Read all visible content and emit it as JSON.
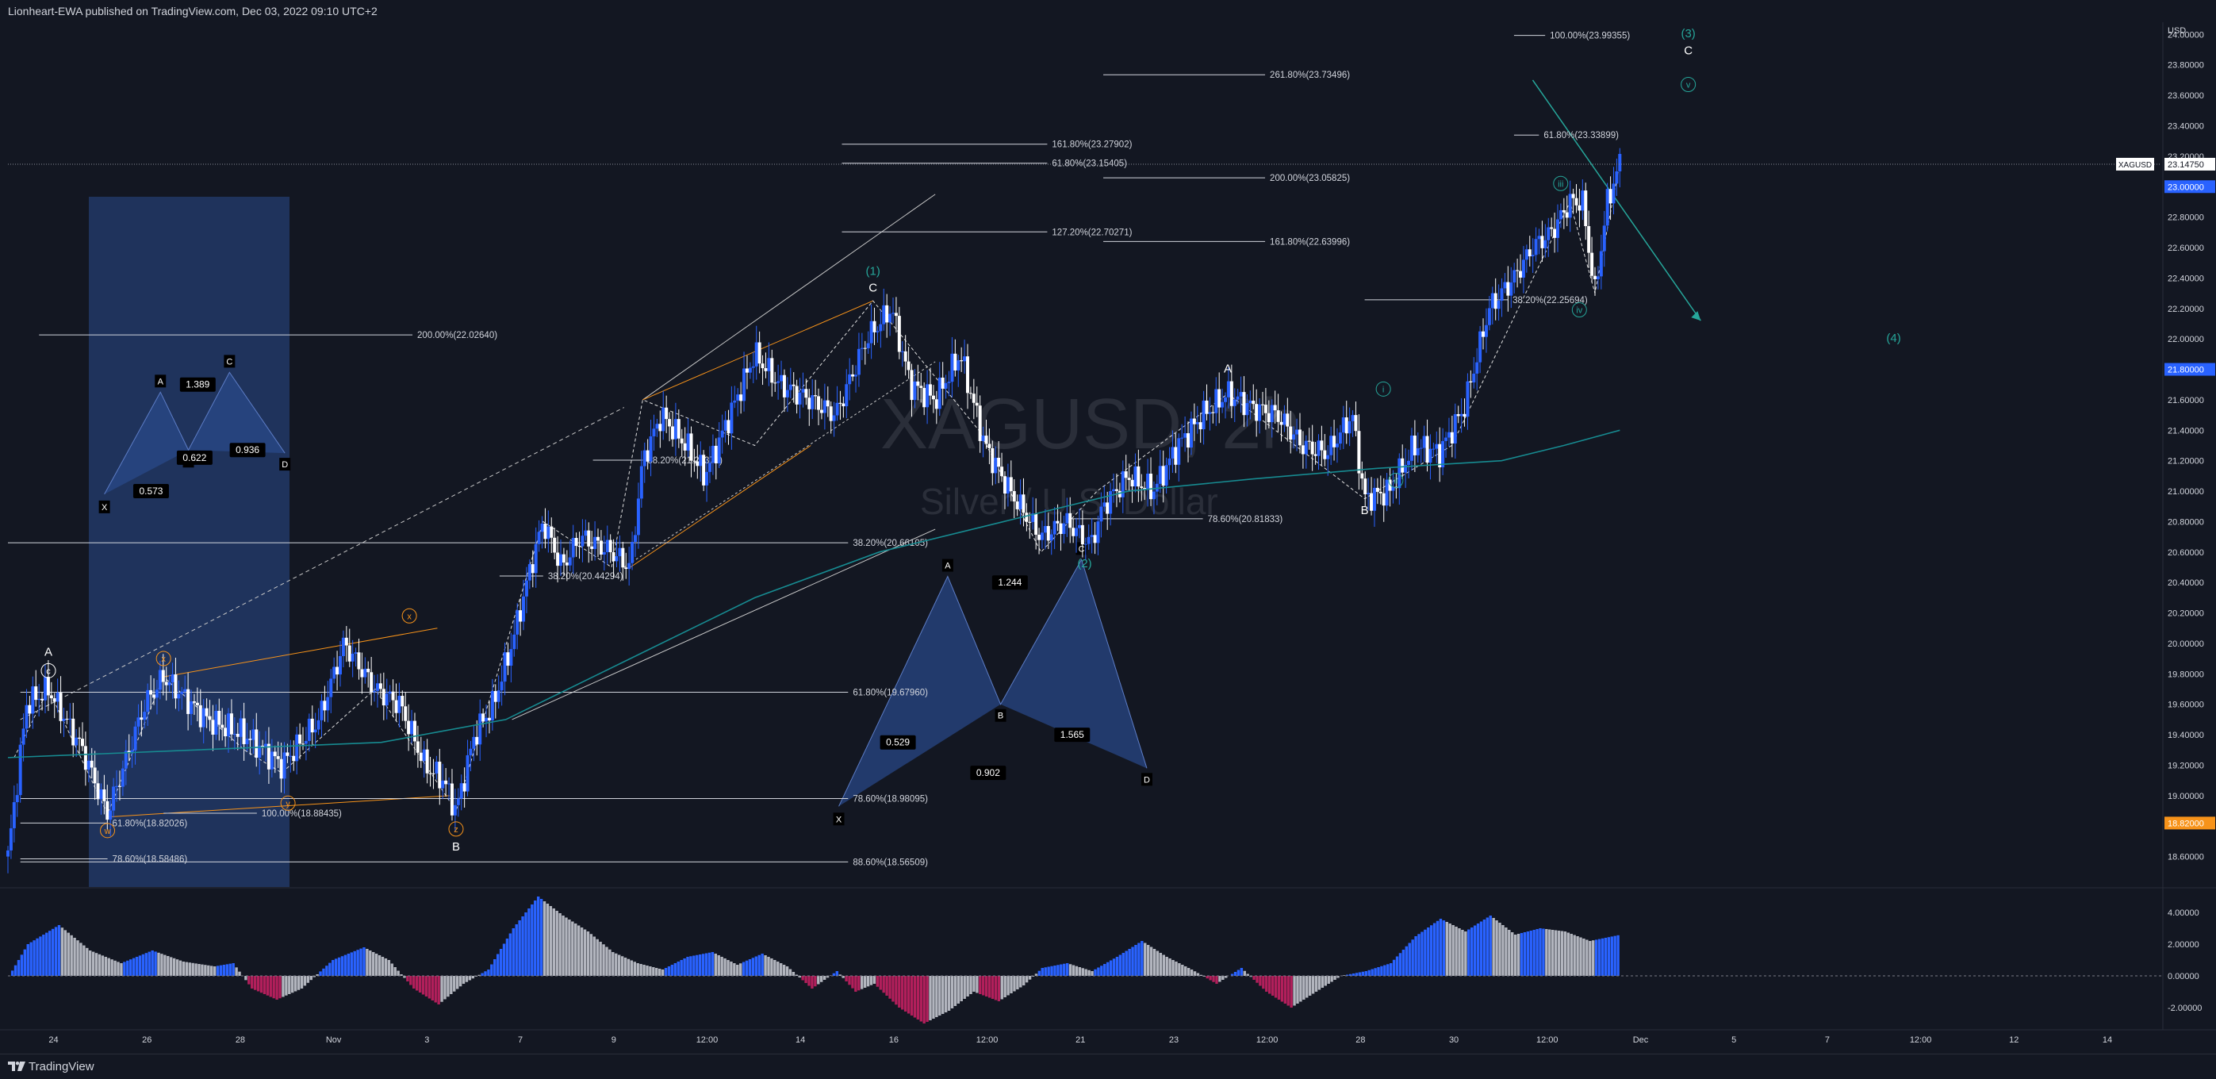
{
  "header": {
    "published": "Lionheart-EWA published on TradingView.com, Dec 03, 2022 09:10 UTC+2"
  },
  "footer": {
    "brand": "TradingView",
    "logo_icon": "tradingview-logo-icon"
  },
  "colors": {
    "background": "#131722",
    "up_candle": "#2962ff",
    "down_candle": "#ffffff",
    "ma_line": "#178b91",
    "orange": "#f7931a",
    "teal": "#26a69a",
    "harmonic_fill": "#2a4a8c",
    "hist_pos_strong": "#2962ff",
    "hist_pos_weak": "#b2b5be",
    "hist_neg_strong": "#b21f5b",
    "hist_neg_weak": "#b2b5be"
  },
  "chart_data": {
    "type": "candlestick",
    "title": "XAGUSD, 2h",
    "subtitle": "Silver / U.S. Dollar",
    "symbol": "XAGUSD",
    "currency": "USD",
    "last_price": "23.14750",
    "price_badges": [
      {
        "label": "23.00000",
        "color": "#2962ff"
      },
      {
        "label": "21.80000",
        "color": "#2962ff"
      },
      {
        "label": "18.82000",
        "color": "#f7931a"
      }
    ],
    "ylim": [
      18.4,
      24.08
    ],
    "y_ticks": [
      "18.60000",
      "18.80000",
      "19.00000",
      "19.20000",
      "19.40000",
      "19.60000",
      "19.80000",
      "20.00000",
      "20.20000",
      "20.40000",
      "20.60000",
      "20.80000",
      "21.00000",
      "21.20000",
      "21.40000",
      "21.60000",
      "21.80000",
      "22.00000",
      "22.20000",
      "22.40000",
      "22.60000",
      "22.80000",
      "23.00000",
      "23.20000",
      "23.40000",
      "23.60000",
      "23.80000",
      "24.00000"
    ],
    "x_ticks": [
      "24",
      "26",
      "28",
      "Nov",
      "3",
      "7",
      "9",
      "12:00",
      "14",
      "16",
      "12:00",
      "21",
      "23",
      "12:00",
      "28",
      "30",
      "12:00",
      "Dec",
      "5",
      "7",
      "12:00",
      "12",
      "14"
    ],
    "x_tick_positions": [
      0.3,
      1.8,
      3.3,
      4.8,
      6.3,
      7.8,
      9.3,
      10.8,
      12.3,
      13.8,
      15.3,
      16.8,
      18.3,
      19.8,
      21.3,
      22.8,
      24.3,
      25.8,
      27.3,
      28.8,
      30.3,
      31.8,
      33.3
    ],
    "price_path": [
      [
        0,
        18.6
      ],
      [
        0.3,
        19.6
      ],
      [
        0.65,
        19.7
      ],
      [
        1.2,
        19.3
      ],
      [
        1.6,
        18.88
      ],
      [
        2.2,
        19.6
      ],
      [
        2.5,
        19.78
      ],
      [
        3.2,
        19.5
      ],
      [
        3.8,
        19.4
      ],
      [
        4.4,
        19.2
      ],
      [
        5.0,
        19.5
      ],
      [
        5.4,
        20.0
      ],
      [
        5.9,
        19.7
      ],
      [
        6.3,
        19.6
      ],
      [
        6.7,
        19.2
      ],
      [
        7.0,
        19.1
      ],
      [
        7.2,
        18.9
      ],
      [
        7.5,
        19.4
      ],
      [
        7.8,
        19.6
      ],
      [
        8.1,
        20.0
      ],
      [
        8.4,
        20.5
      ],
      [
        8.6,
        20.8
      ],
      [
        8.9,
        20.5
      ],
      [
        9.2,
        20.7
      ],
      [
        9.7,
        20.6
      ],
      [
        10.0,
        20.5
      ],
      [
        10.2,
        21.2
      ],
      [
        10.5,
        21.5
      ],
      [
        10.9,
        21.3
      ],
      [
        11.2,
        21.1
      ],
      [
        11.6,
        21.5
      ],
      [
        12.0,
        21.9
      ],
      [
        12.4,
        21.7
      ],
      [
        12.9,
        21.6
      ],
      [
        13.3,
        21.5
      ],
      [
        13.8,
        22.0
      ],
      [
        14.2,
        22.2
      ],
      [
        14.5,
        21.7
      ],
      [
        14.9,
        21.6
      ],
      [
        15.3,
        21.9
      ],
      [
        15.7,
        21.3
      ],
      [
        16.1,
        21.0
      ],
      [
        16.6,
        20.7
      ],
      [
        17.0,
        20.8
      ],
      [
        17.4,
        20.65
      ],
      [
        17.6,
        20.9
      ],
      [
        18.0,
        21.1
      ],
      [
        18.4,
        21.0
      ],
      [
        18.8,
        21.3
      ],
      [
        19.2,
        21.5
      ],
      [
        19.6,
        21.64
      ],
      [
        20.0,
        21.55
      ],
      [
        20.4,
        21.5
      ],
      [
        20.8,
        21.3
      ],
      [
        21.2,
        21.25
      ],
      [
        21.6,
        21.5
      ],
      [
        21.8,
        20.95
      ],
      [
        22.2,
        21.0
      ],
      [
        22.6,
        21.3
      ],
      [
        23.0,
        21.25
      ],
      [
        23.4,
        21.55
      ],
      [
        23.8,
        22.2
      ],
      [
        24.2,
        22.4
      ],
      [
        24.5,
        22.6
      ],
      [
        24.8,
        22.7
      ],
      [
        25.1,
        22.9
      ],
      [
        25.3,
        22.9
      ],
      [
        25.5,
        22.3
      ],
      [
        25.7,
        22.9
      ],
      [
        25.9,
        23.15
      ]
    ],
    "moving_average": [
      [
        0,
        19.25
      ],
      [
        3,
        19.3
      ],
      [
        6,
        19.35
      ],
      [
        8,
        19.5
      ],
      [
        10,
        19.9
      ],
      [
        12,
        20.3
      ],
      [
        14,
        20.6
      ],
      [
        16,
        20.8
      ],
      [
        18,
        21.0
      ],
      [
        20,
        21.08
      ],
      [
        22,
        21.15
      ],
      [
        24,
        21.2
      ],
      [
        25,
        21.3
      ],
      [
        25.9,
        21.4
      ]
    ],
    "fib_levels": [
      {
        "label": "200.00%(22.02640)",
        "price": 22.0264
      },
      {
        "label": "100.00%(23.99355)",
        "price": 23.99355
      },
      {
        "label": "261.80%(23.73496)",
        "price": 23.73496
      },
      {
        "label": "61.80%(23.33899)",
        "price": 23.33899
      },
      {
        "label": "161.80%(23.27902)",
        "price": 23.27902
      },
      {
        "label": "61.80%(23.15405)",
        "price": 23.15405
      },
      {
        "label": "200.00%(23.05825)",
        "price": 23.05825
      },
      {
        "label": "127.20%(22.70271)",
        "price": 22.70271
      },
      {
        "label": "161.80%(22.63996)",
        "price": 22.63996
      },
      {
        "label": "38.20%(22.25694)",
        "price": 22.25694
      },
      {
        "label": "38.20%(21.20371)",
        "price": 21.20371
      },
      {
        "label": "78.60%(20.81833)",
        "price": 20.81833
      },
      {
        "label": "38.20%(20.66105)",
        "price": 20.66105
      },
      {
        "label": "38.20%(20.44294)",
        "price": 20.44294
      },
      {
        "label": "61.80%(19.67960)",
        "price": 19.6796
      },
      {
        "label": "78.60%(18.98095)",
        "price": 18.98095
      },
      {
        "label": "100.00%(18.88435)",
        "price": 18.88435
      },
      {
        "label": "61.80%(18.82026)",
        "price": 18.82026
      },
      {
        "label": "88.60%(18.56509)",
        "price": 18.56509
      },
      {
        "label": "78.60%(18.58486)",
        "price": 18.58486
      }
    ],
    "wave_labels": [
      "A",
      "c",
      "x",
      "w",
      "y",
      "x",
      "z",
      "B",
      "(1)",
      "C",
      "(2)",
      "A",
      "B",
      "i",
      "ii",
      "iii",
      "iv",
      "v",
      "(3)",
      "C",
      "(4)"
    ],
    "harmonic_left": {
      "points": [
        "X",
        "A",
        "B",
        "C",
        "D"
      ],
      "ratios": [
        "0.573",
        "1.389",
        "0.622",
        "0.936"
      ]
    },
    "harmonic_right": {
      "points": [
        "X",
        "A",
        "B",
        "C",
        "D"
      ],
      "ratios": [
        "0.529",
        "1.244",
        "1.565",
        "0.902"
      ]
    },
    "oscillator_ticks": [
      "4.00000",
      "2.00000",
      "0.00000",
      "-2.00000"
    ],
    "oscillator_ylim": [
      -3.4,
      5.5
    ],
    "oscillator": [
      [
        0,
        0.0
      ],
      [
        0.3,
        2.0
      ],
      [
        0.8,
        3.2
      ],
      [
        1.3,
        1.6
      ],
      [
        1.8,
        0.8
      ],
      [
        2.3,
        1.6
      ],
      [
        2.8,
        0.9
      ],
      [
        3.3,
        0.6
      ],
      [
        3.6,
        0.8
      ],
      [
        3.9,
        -0.8
      ],
      [
        4.3,
        -1.5
      ],
      [
        4.7,
        -0.8
      ],
      [
        5.2,
        1.0
      ],
      [
        5.7,
        1.8
      ],
      [
        6.1,
        1.0
      ],
      [
        6.5,
        -0.8
      ],
      [
        6.9,
        -1.8
      ],
      [
        7.3,
        -0.5
      ],
      [
        7.7,
        0.4
      ],
      [
        8.1,
        3.0
      ],
      [
        8.5,
        5.0
      ],
      [
        8.9,
        3.8
      ],
      [
        9.3,
        2.8
      ],
      [
        9.7,
        1.5
      ],
      [
        10.1,
        0.8
      ],
      [
        10.5,
        0.4
      ],
      [
        10.9,
        1.2
      ],
      [
        11.3,
        1.5
      ],
      [
        11.7,
        0.7
      ],
      [
        12.1,
        1.4
      ],
      [
        12.5,
        0.6
      ],
      [
        12.9,
        -0.8
      ],
      [
        13.3,
        0.3
      ],
      [
        13.6,
        -1.0
      ],
      [
        13.9,
        -0.5
      ],
      [
        14.3,
        -2.0
      ],
      [
        14.7,
        -3.0
      ],
      [
        15.1,
        -2.2
      ],
      [
        15.5,
        -1.0
      ],
      [
        15.9,
        -1.6
      ],
      [
        16.3,
        -0.6
      ],
      [
        16.6,
        0.5
      ],
      [
        17.0,
        0.8
      ],
      [
        17.4,
        0.3
      ],
      [
        17.8,
        1.2
      ],
      [
        18.2,
        2.2
      ],
      [
        18.6,
        1.2
      ],
      [
        19.0,
        0.4
      ],
      [
        19.4,
        -0.5
      ],
      [
        19.8,
        0.5
      ],
      [
        20.2,
        -1.0
      ],
      [
        20.6,
        -2.0
      ],
      [
        21.0,
        -1.0
      ],
      [
        21.4,
        0.0
      ],
      [
        21.8,
        0.3
      ],
      [
        22.2,
        0.8
      ],
      [
        22.6,
        2.5
      ],
      [
        23.0,
        3.6
      ],
      [
        23.4,
        2.8
      ],
      [
        23.8,
        3.8
      ],
      [
        24.2,
        2.6
      ],
      [
        24.6,
        3.0
      ],
      [
        25.0,
        2.8
      ],
      [
        25.4,
        2.2
      ],
      [
        25.9,
        2.6
      ]
    ]
  }
}
